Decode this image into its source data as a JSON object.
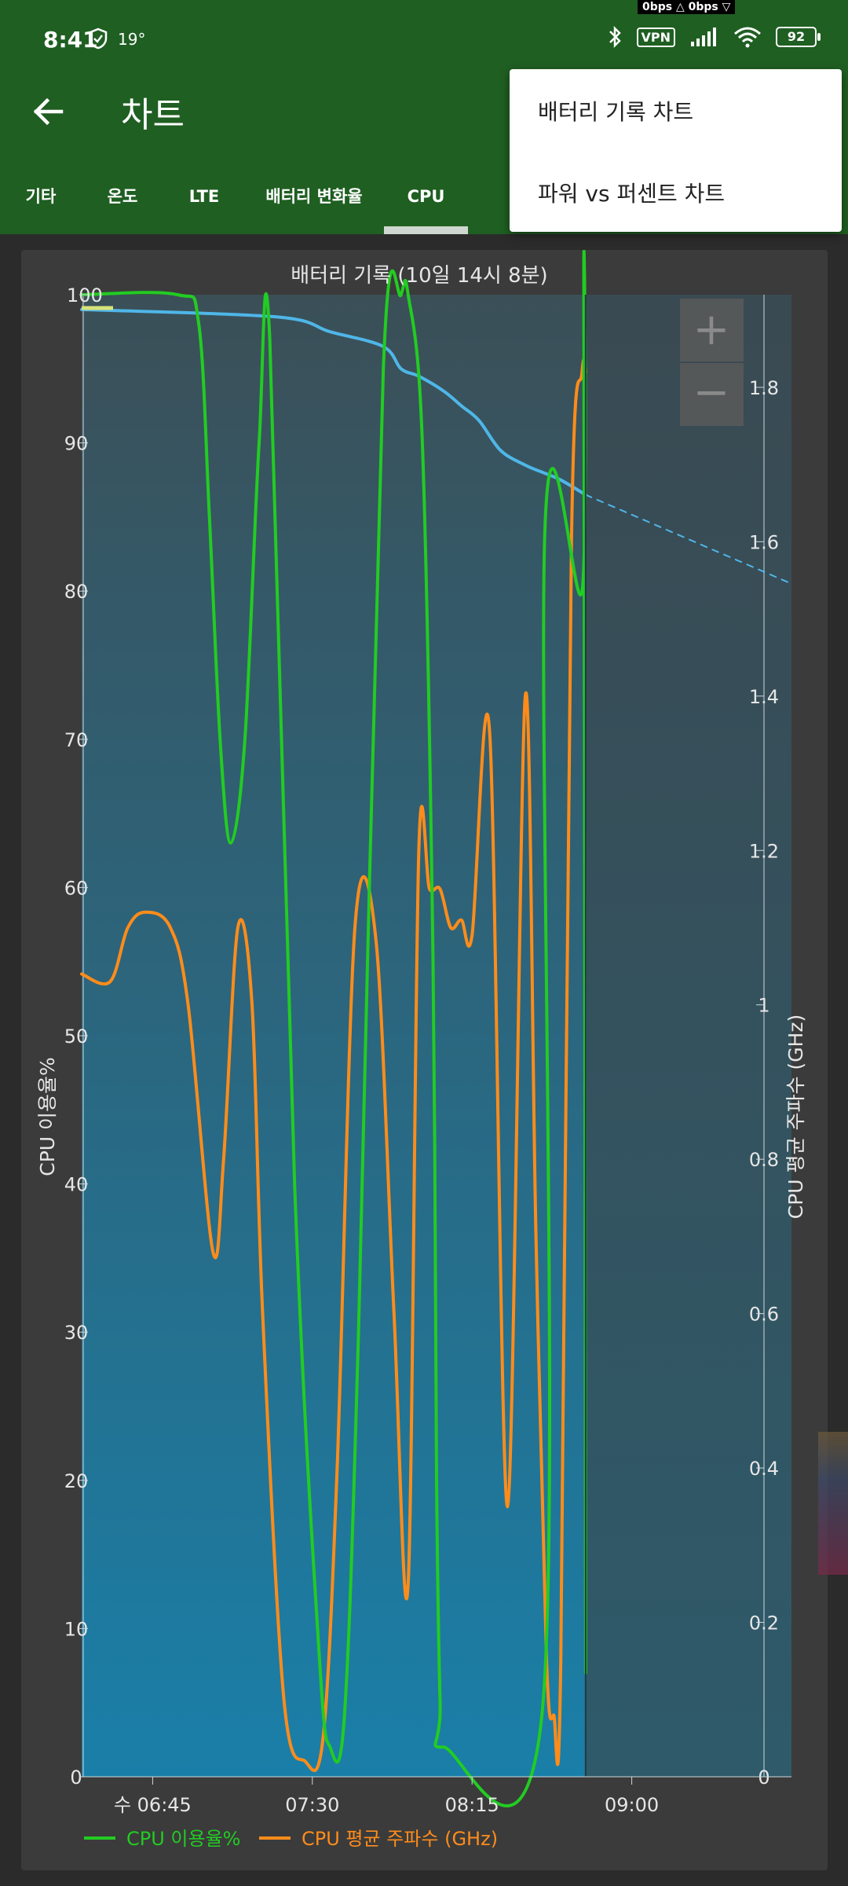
{
  "status_bar": {
    "time": "8:41",
    "temperature": "19°",
    "net_speed": "0bps △ 0bps ▽",
    "vpn": "VPN",
    "battery": "92"
  },
  "header": {
    "title": "차트"
  },
  "tabs": [
    {
      "label": "기타"
    },
    {
      "label": "온도"
    },
    {
      "label": "LTE"
    },
    {
      "label": "배터리 변화율"
    },
    {
      "label": "CPU",
      "active": true
    }
  ],
  "menu": {
    "items": [
      "배터리 기록 차트",
      "파워 vs 퍼센트 차트"
    ]
  },
  "zoom": {
    "plus": "+",
    "minus": "−"
  },
  "chart_data": {
    "type": "line",
    "title": "배터리 기록 (10일 14시 8분)",
    "y_left": {
      "label": "CPU 이용율%",
      "range": [
        0,
        100
      ],
      "ticks": [
        "0",
        "10",
        "20",
        "30",
        "40",
        "50",
        "60",
        "70",
        "80",
        "90",
        "100"
      ]
    },
    "y_right": {
      "label": "CPU 평균 주파수 (GHz)",
      "range": [
        0,
        1.92
      ],
      "ticks": [
        "0",
        "0.2",
        "0.4",
        "0.6",
        "0.8",
        "1",
        "1.2",
        "1.4",
        "1.6",
        "1.8"
      ]
    },
    "x_ticks": [
      "수 06:45",
      "07:30",
      "08:15",
      "09:00"
    ],
    "x_range_minutes": [
      385,
      585
    ],
    "legend": {
      "placement": "bottom-left",
      "entries": [
        {
          "name": "CPU 이용율%",
          "color": "#22cc22"
        },
        {
          "name": "CPU 평균 주파수 (GHz)",
          "color": "#ff8c1a"
        }
      ]
    },
    "series": [
      {
        "name": "CPU 이용율%",
        "axis": "left",
        "color": "#22cc22",
        "x": [
          385,
          412,
          418,
          421,
          424,
          427,
          431,
          435,
          438,
          445,
          452,
          455,
          459,
          463,
          470,
          475,
          477,
          481,
          484,
          485,
          486,
          487,
          515,
          515.5,
          526,
          526.5,
          527
        ],
        "y": [
          100,
          100,
          98,
          85,
          70,
          63,
          70,
          90,
          97,
          40,
          8,
          2,
          4,
          30,
          95,
          100,
          100,
          90,
          55,
          20,
          5,
          2,
          5,
          84,
          80,
          100,
          7
        ]
      },
      {
        "name": "CPU 평균 주파수 (GHz)",
        "axis": "right",
        "color": "#ff8c1a",
        "x": [
          385,
          393,
          398,
          403,
          410,
          415,
          422,
          425,
          429,
          433,
          436,
          442,
          448,
          453,
          457,
          462,
          468,
          473,
          477,
          480,
          483,
          486,
          489,
          492,
          495,
          500,
          505,
          510,
          513,
          516,
          518,
          520,
          523,
          526,
          527
        ],
        "y": [
          1.04,
          1.03,
          1.1,
          1.12,
          1.1,
          1.0,
          0.68,
          0.8,
          1.1,
          1.0,
          0.6,
          0.1,
          0.02,
          0.05,
          0.4,
          1.1,
          1.08,
          0.6,
          0.25,
          1.2,
          1.15,
          1.15,
          1.1,
          1.11,
          1.09,
          1.35,
          0.35,
          1.4,
          0.7,
          0.15,
          0.08,
          0.15,
          1.6,
          1.82,
          1.82
        ]
      },
      {
        "name": "",
        "axis": "left",
        "color": "#4fb6e8",
        "x": [
          385,
          440,
          455,
          470,
          475,
          480,
          487,
          492,
          497,
          503,
          510,
          515,
          520,
          527
        ],
        "y": [
          99,
          98.5,
          97.5,
          96.5,
          95,
          94.5,
          93.5,
          92.5,
          91.5,
          89.5,
          88.5,
          88,
          87.5,
          86.5
        ]
      },
      {
        "name": "",
        "axis": "left",
        "dashed": true,
        "color": "#4fb6e8",
        "x": [
          527,
          585
        ],
        "y": [
          86.5,
          80.5
        ]
      }
    ],
    "current_x_minutes": 527
  }
}
